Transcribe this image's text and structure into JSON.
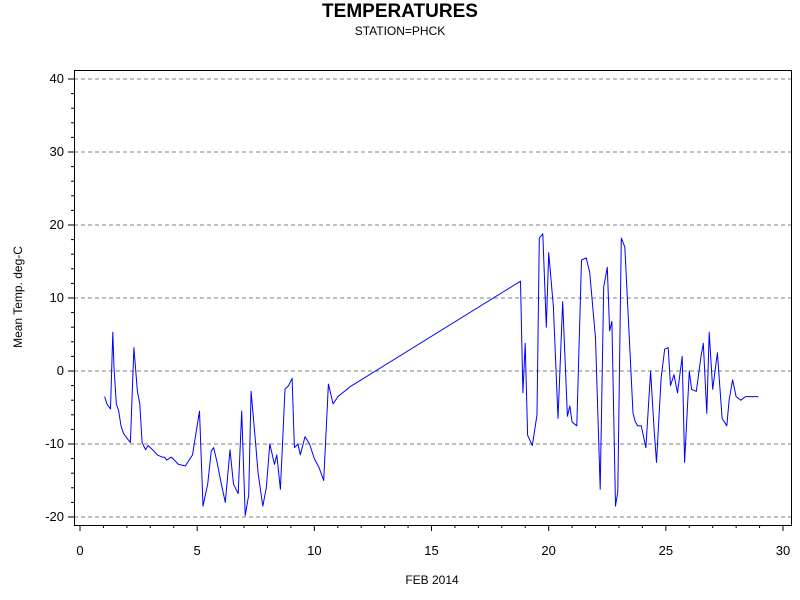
{
  "chart_data": {
    "type": "line",
    "title": "TEMPERATURES",
    "subtitle": "STATION=PHCK",
    "xlabel": "FEB 2014",
    "ylabel": "Mean Temp. deg-C",
    "xlim": [
      0,
      30
    ],
    "ylim": [
      -20,
      40
    ],
    "xticks": [
      0,
      5,
      10,
      15,
      20,
      25,
      30
    ],
    "yticks": [
      -20,
      -10,
      0,
      10,
      20,
      30,
      40
    ],
    "grid": "y-dashed",
    "color": "#0000ff",
    "series": [
      {
        "x": [
          1.05,
          1.15,
          1.3,
          1.4,
          1.45,
          1.55,
          1.65,
          1.75,
          1.85,
          2.0,
          2.15,
          2.3,
          2.45,
          2.55,
          2.65,
          2.8,
          2.9,
          3.1,
          3.3,
          3.5,
          3.6,
          3.7,
          3.9,
          4.2,
          4.5,
          4.8,
          5.1,
          5.25,
          5.45,
          5.6,
          5.7,
          5.85,
          6.0,
          6.2,
          6.4,
          6.55,
          6.75,
          6.9,
          7.05,
          7.2,
          7.3,
          7.5,
          7.6,
          7.8,
          7.95,
          8.1,
          8.3,
          8.4,
          8.55,
          8.75,
          8.9,
          9.05,
          9.15,
          9.3,
          9.4,
          9.6,
          9.8,
          10.0,
          10.2,
          10.4,
          10.6,
          10.8,
          10.95,
          11.0,
          11.2,
          11.4,
          11.5,
          18.8,
          18.9,
          19.0,
          19.1,
          19.3,
          19.5,
          19.6,
          19.75,
          19.9,
          20.0,
          20.2,
          20.4,
          20.6,
          20.8,
          20.9,
          21.0,
          21.2,
          21.4,
          21.6,
          21.75,
          22.0,
          22.2,
          22.35,
          22.5,
          22.6,
          22.7,
          22.85,
          22.95,
          23.1,
          23.25,
          23.45,
          23.6,
          23.7,
          23.8,
          23.95,
          24.15,
          24.35,
          24.5,
          24.6,
          24.8,
          24.95,
          25.1,
          25.2,
          25.35,
          25.5,
          25.7,
          25.8,
          26.0,
          26.1,
          26.3,
          26.5,
          26.6,
          26.75,
          26.85,
          27.0,
          27.2,
          27.4,
          27.6,
          27.7,
          27.85,
          28.0,
          28.2,
          28.4,
          28.6,
          28.8,
          28.95
        ],
        "y": [
          -3.5,
          -4.5,
          -5.2,
          5.3,
          0.5,
          -4.5,
          -5.5,
          -7.5,
          -8.5,
          -9.2,
          -9.8,
          3.2,
          -2.8,
          -4.5,
          -9.8,
          -10.8,
          -10.2,
          -10.8,
          -11.5,
          -11.8,
          -11.8,
          -12.2,
          -11.8,
          -12.8,
          -13.0,
          -11.5,
          -5.5,
          -18.5,
          -15.5,
          -11.0,
          -10.5,
          -12.5,
          -15.0,
          -18.0,
          -10.8,
          -15.5,
          -16.8,
          -5.5,
          -19.8,
          -17.0,
          -2.8,
          -10.2,
          -14.0,
          -18.5,
          -16.0,
          -10.0,
          -12.8,
          -11.5,
          -16.2,
          -2.5,
          -2.0,
          -1.0,
          -10.5,
          -10.0,
          -11.5,
          -9.0,
          -10.0,
          -12.0,
          -13.2,
          -15.0,
          -1.8,
          -4.5,
          -3.8,
          -3.5,
          -3.0,
          -2.5,
          -2.2,
          12.3,
          -3.0,
          3.8,
          -8.8,
          -10.2,
          -6.0,
          18.2,
          18.8,
          6.0,
          16.2,
          8.8,
          -6.5,
          9.5,
          -6.2,
          -4.8,
          -7.0,
          -7.5,
          15.2,
          15.5,
          13.5,
          4.5,
          -16.2,
          11.5,
          14.2,
          5.5,
          6.8,
          -18.5,
          -16.5,
          18.2,
          17.0,
          4.0,
          -5.8,
          -7.0,
          -7.5,
          -7.5,
          -10.5,
          0.0,
          -8.0,
          -12.5,
          -1.0,
          3.0,
          3.2,
          -2.0,
          -0.5,
          -3.0,
          2.0,
          -12.5,
          0.0,
          -2.5,
          -2.8,
          2.0,
          3.8,
          -5.8,
          5.3,
          -2.5,
          2.5,
          -6.5,
          -7.5,
          -4.0,
          -1.2,
          -3.5,
          -4.0,
          -3.5,
          -3.5,
          -3.5,
          -3.5
        ],
        "_note": "spatially ordered sample approximating plotted trace"
      }
    ]
  }
}
